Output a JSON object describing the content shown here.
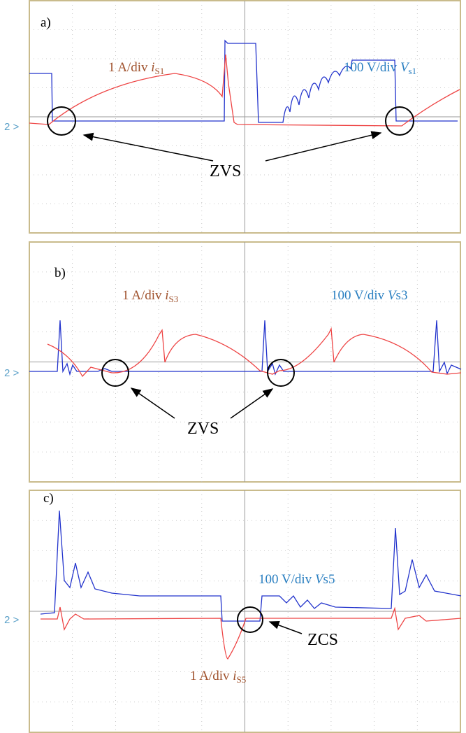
{
  "panels": [
    {
      "label": "a)",
      "current": {
        "text": "1 A/div ",
        "symbol": "i",
        "sub": "S1"
      },
      "voltage": {
        "text": "100 V/div ",
        "symbol": "V",
        "sub": "s1"
      },
      "channel": "2 >",
      "annotation": "ZVS"
    },
    {
      "label": "b)",
      "current": {
        "text": "1 A/div ",
        "symbol": "i",
        "sub": "S3"
      },
      "voltage": {
        "text": "100 V/div ",
        "symbol": "V",
        "sub": "s3"
      },
      "channel": "2 >",
      "annotation": "ZVS"
    },
    {
      "label": "c)",
      "current": {
        "text": "1 A/div ",
        "symbol": "i",
        "sub": "S5"
      },
      "voltage": {
        "text": "100 V/div ",
        "symbol": "V",
        "sub": "s5"
      },
      "channel": "2 >",
      "annotation": "ZCS"
    }
  ]
}
